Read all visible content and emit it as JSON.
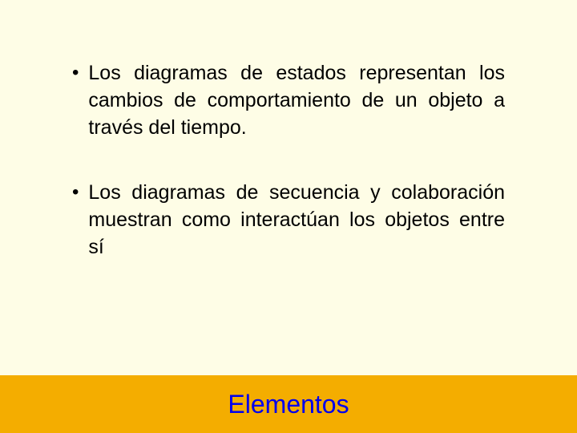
{
  "slide": {
    "background_color": "#fefde6",
    "text_color": "#000000",
    "font_family": "Arial",
    "bullets": [
      {
        "text": "Los diagramas de estados representan los cambios de comportamiento de un objeto a través del tiempo."
      },
      {
        "text": "Los diagramas de secuencia y colaboración muestran como interactúan los objetos entre sí"
      }
    ],
    "bullet_fontsize": 25,
    "bullet_marker": "•"
  },
  "footer": {
    "label": "Elementos",
    "background_color": "#f4ad00",
    "text_color": "#0000ee",
    "fontsize": 32
  }
}
